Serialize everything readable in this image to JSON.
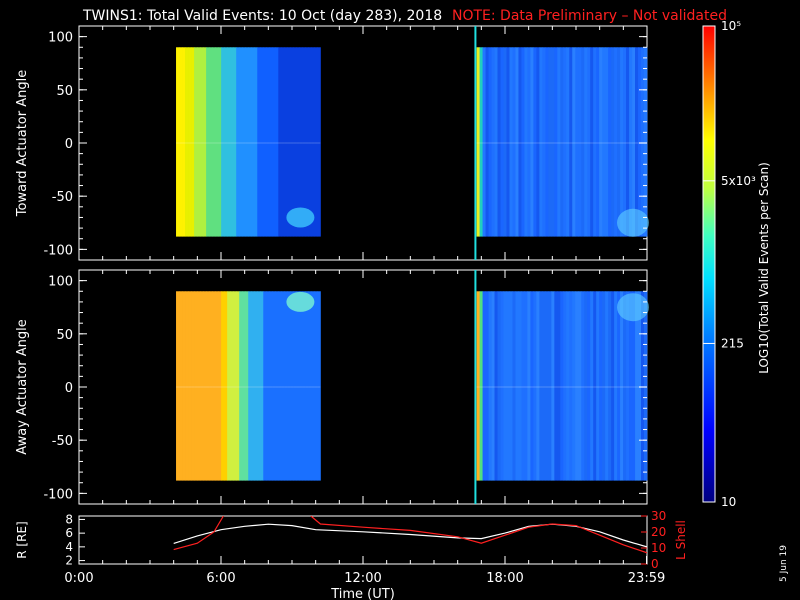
{
  "title": {
    "main": "TWINS1: Total Valid Events: 10 Oct (day 283), 2018",
    "note": "NOTE: Data Preliminary – Not validated",
    "note_color": "#ff2020"
  },
  "stamp": "5 Jun 19",
  "chart_data": [
    {
      "type": "heatmap",
      "name": "toward",
      "ylabel": "Toward Actuator Angle",
      "ylim": [
        -110,
        110
      ],
      "yticks": [
        100,
        50,
        0,
        -50,
        -100
      ],
      "x_range_hours": [
        0,
        24
      ],
      "data_blocks": [
        {
          "start_h": 4.1,
          "end_h": 10.2,
          "y_range": [
            -88,
            90
          ],
          "color_profile": "toward_early"
        },
        {
          "start_h": 16.8,
          "end_h": 24,
          "y_range": [
            -88,
            90
          ],
          "color_profile": "toward_late"
        }
      ],
      "vertical_marker_h": 16.75
    },
    {
      "type": "heatmap",
      "name": "away",
      "ylabel": "Away Actuator Angle",
      "ylim": [
        -110,
        110
      ],
      "yticks": [
        100,
        50,
        0,
        -50,
        -100
      ],
      "x_range_hours": [
        0,
        24
      ],
      "data_blocks": [
        {
          "start_h": 4.1,
          "end_h": 10.2,
          "y_range": [
            -88,
            90
          ],
          "color_profile": "away_early"
        },
        {
          "start_h": 16.8,
          "end_h": 24,
          "y_range": [
            -88,
            90
          ],
          "color_profile": "away_late"
        }
      ],
      "vertical_marker_h": 16.75
    },
    {
      "type": "line",
      "name": "orbit",
      "ylabel_left": "R [RE]",
      "ylabel_right": "L Shell",
      "left_ylim": [
        1.5,
        8.5
      ],
      "left_yticks": [
        8,
        6,
        4,
        2
      ],
      "right_ylim": [
        0,
        30
      ],
      "right_yticks": [
        30,
        20,
        10,
        0
      ],
      "xticks": [
        "0:00",
        "6:00",
        "12:00",
        "18:00",
        "23:59"
      ],
      "xtick_hours": [
        0,
        6,
        12,
        18,
        23.98
      ],
      "xlabel": "Time (UT)",
      "series": [
        {
          "axis": "left",
          "color": "#ffffff",
          "x": [
            4.0,
            5.0,
            6.0,
            7.0,
            8.0,
            9.0,
            10.0,
            12.0,
            14.0,
            16.0,
            17.0,
            18.0,
            19.0,
            20.0,
            21.0,
            22.0,
            23.0,
            24.0
          ],
          "y": [
            4.5,
            5.6,
            6.5,
            7.0,
            7.3,
            7.1,
            6.5,
            6.2,
            5.8,
            5.3,
            5.2,
            6.0,
            7.0,
            7.3,
            7.0,
            6.2,
            5.0,
            4.0
          ]
        },
        {
          "axis": "right",
          "color": "#ff2020",
          "segments": [
            {
              "x": [
                4.0,
                5.0,
                5.7,
                6.1
              ],
              "y": [
                9,
                13,
                20,
                30
              ]
            },
            {
              "x": [
                9.8,
                10.2,
                12.0,
                14.0,
                16.0,
                17.0,
                18.0,
                19.0,
                20.0,
                21.0,
                22.0,
                23.0,
                24.0
              ],
              "y": [
                30,
                25,
                23,
                21,
                17,
                13,
                18,
                23,
                25,
                24,
                18,
                12,
                7
              ]
            }
          ]
        }
      ]
    }
  ],
  "colorbar": {
    "label": "LOG10(Total Valid Events per Scan)",
    "ticks": [
      {
        "value": 100000,
        "label": "10⁵"
      },
      {
        "value": 5000,
        "label": "5x10³"
      },
      {
        "value": 215,
        "label": "215"
      },
      {
        "value": 10,
        "label": "10"
      }
    ],
    "min": 10,
    "max": 100000
  }
}
